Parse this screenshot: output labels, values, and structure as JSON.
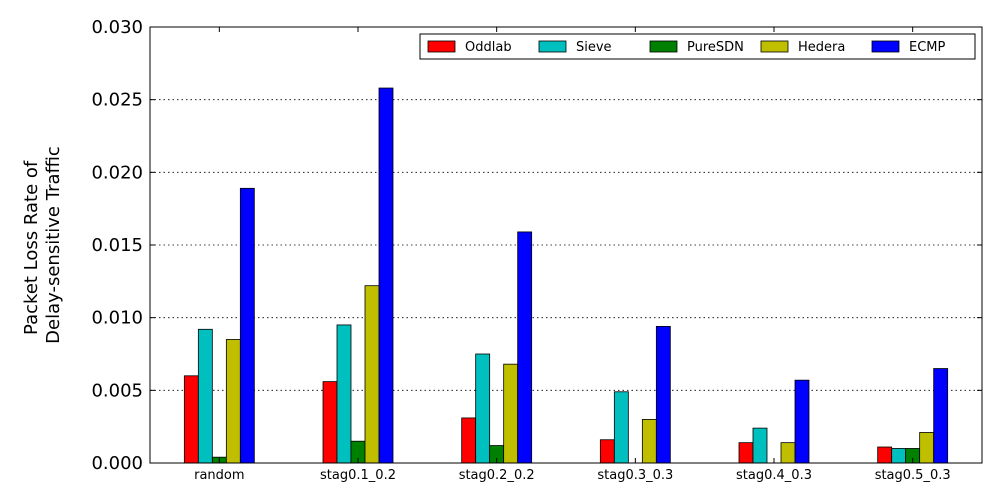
{
  "chart_data": {
    "type": "bar",
    "title": "",
    "xlabel": "",
    "ylabel_lines": [
      "Packet Loss Rate of",
      "Delay-sensitive Traffic"
    ],
    "ylim": [
      0,
      0.03
    ],
    "yticks": [
      "0.000",
      "0.005",
      "0.010",
      "0.015",
      "0.020",
      "0.025",
      "0.030"
    ],
    "grid": "horizontal-dotted",
    "legend_position": "top-right",
    "categories": [
      "random",
      "stag0.1_0.2",
      "stag0.2_0.2",
      "stag0.3_0.3",
      "stag0.4_0.3",
      "stag0.5_0.3"
    ],
    "series": [
      {
        "name": "Oddlab",
        "color": "#ff0000",
        "values": [
          0.006,
          0.0056,
          0.0031,
          0.0016,
          0.0014,
          0.0011
        ]
      },
      {
        "name": "Sieve",
        "color": "#00bfbf",
        "values": [
          0.0092,
          0.0095,
          0.0075,
          0.0049,
          0.0024,
          0.001
        ]
      },
      {
        "name": "PureSDN",
        "color": "#008000",
        "values": [
          0.0004,
          0.0015,
          0.0012,
          0.0,
          0.0,
          0.001
        ]
      },
      {
        "name": "Hedera",
        "color": "#bfbf00",
        "values": [
          0.0085,
          0.0122,
          0.0068,
          0.003,
          0.0014,
          0.0021
        ]
      },
      {
        "name": "ECMP",
        "color": "#0000ff",
        "values": [
          0.0189,
          0.0258,
          0.0159,
          0.0094,
          0.0057,
          0.0065
        ]
      }
    ]
  }
}
